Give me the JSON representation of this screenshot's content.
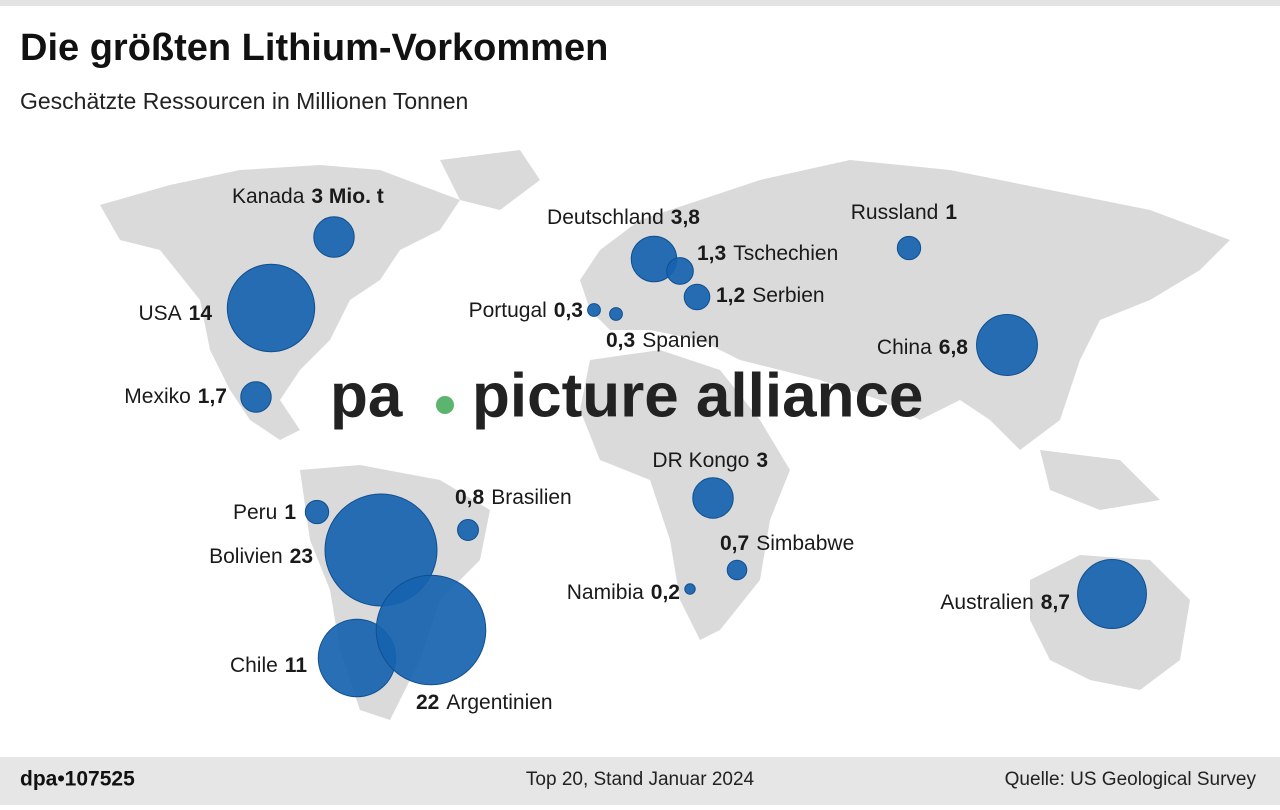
{
  "chart_data": {
    "type": "bubble-map",
    "title": "Die größten Lithium-Vorkommen",
    "subtitle": "Geschätzte Ressourcen in Millionen Tonnen",
    "categories": [
      "Kanada",
      "USA",
      "Mexiko",
      "Deutschland",
      "Tschechien",
      "Serbien",
      "Portugal",
      "Spanien",
      "Russland",
      "China",
      "DR Kongo",
      "Peru",
      "Bolivien",
      "Brasilien",
      "Simbabwe",
      "Namibia",
      "Australien",
      "Chile",
      "Argentinien"
    ],
    "values": [
      3,
      14,
      1.7,
      3.8,
      1.3,
      1.2,
      0.3,
      0.3,
      1,
      6.8,
      3,
      1,
      23,
      0.8,
      0.7,
      0.2,
      8.7,
      11,
      22
    ],
    "value_labels": [
      "3 Mio. t",
      "14",
      "1,7",
      "3,8",
      "1,3",
      "1,2",
      "0,3",
      "0,3",
      "1",
      "6,8",
      "3",
      "1",
      "23",
      "0,8",
      "0,7",
      "0,2",
      "8,7",
      "11",
      "22"
    ],
    "color": "#1763b0",
    "watermark": [
      "pa",
      "picture alliance"
    ],
    "footer": {
      "id": "dpa•107525",
      "note": "Top 20, Stand Januar 2024",
      "source": "Quelle: US Geological Survey"
    }
  }
}
